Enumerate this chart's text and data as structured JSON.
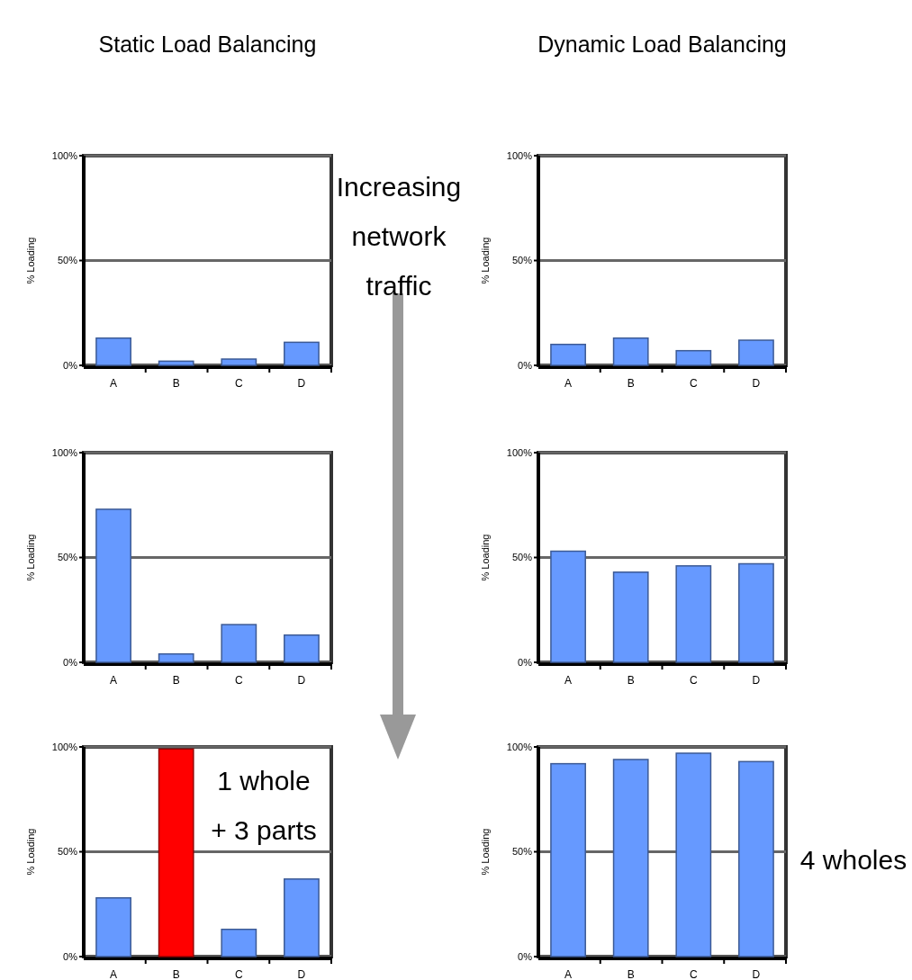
{
  "chart_data": [
    {
      "type": "bar",
      "title": "Static Load Balancing",
      "ylabel": "% Loading",
      "categories": [
        "A",
        "B",
        "C",
        "D"
      ],
      "values": [
        13,
        2,
        3,
        11
      ],
      "color": "#6699ff",
      "ylim": [
        0,
        100
      ],
      "yticks": [
        {
          "value": 0,
          "label": "0%"
        },
        {
          "value": 50,
          "label": "50%"
        },
        {
          "value": 100,
          "label": "100%"
        }
      ],
      "grid": "y",
      "annotations": [
        "Increasing network traffic"
      ]
    },
    {
      "type": "bar",
      "title": "Dynamic Load Balancing",
      "ylabel": "% Loading",
      "categories": [
        "A",
        "B",
        "C",
        "D"
      ],
      "values": [
        10,
        13,
        7,
        12
      ],
      "color": "#6699ff",
      "ylim": [
        0,
        100
      ],
      "yticks": [
        {
          "value": 0,
          "label": "0%"
        },
        {
          "value": 50,
          "label": "50%"
        },
        {
          "value": 100,
          "label": "100%"
        }
      ],
      "grid": "y"
    },
    {
      "type": "bar",
      "ylabel": "% Loading",
      "categories": [
        "A",
        "B",
        "C",
        "D"
      ],
      "values": [
        73,
        4,
        18,
        13
      ],
      "color": "#6699ff",
      "ylim": [
        0,
        100
      ],
      "yticks": [
        {
          "value": 0,
          "label": "0%"
        },
        {
          "value": 50,
          "label": "50%"
        },
        {
          "value": 100,
          "label": "100%"
        }
      ],
      "grid": "y"
    },
    {
      "type": "bar",
      "ylabel": "% Loading",
      "categories": [
        "A",
        "B",
        "C",
        "D"
      ],
      "values": [
        53,
        43,
        46,
        47
      ],
      "color": "#6699ff",
      "ylim": [
        0,
        100
      ],
      "yticks": [
        {
          "value": 0,
          "label": "0%"
        },
        {
          "value": 50,
          "label": "50%"
        },
        {
          "value": 100,
          "label": "100%"
        }
      ],
      "grid": "y"
    },
    {
      "type": "bar",
      "ylabel": "% Loading",
      "categories": [
        "A",
        "B",
        "C",
        "D"
      ],
      "values": [
        28,
        99,
        13,
        37
      ],
      "colors": [
        "#6699ff",
        "#ff0000",
        "#6699ff",
        "#6699ff"
      ],
      "ylim": [
        0,
        100
      ],
      "yticks": [
        {
          "value": 0,
          "label": "0%"
        },
        {
          "value": 50,
          "label": "50%"
        },
        {
          "value": 100,
          "label": "100%"
        }
      ],
      "grid": "y",
      "annotations": [
        "1 whole + 3 parts"
      ]
    },
    {
      "type": "bar",
      "ylabel": "% Loading",
      "categories": [
        "A",
        "B",
        "C",
        "D"
      ],
      "values": [
        92,
        94,
        97,
        93
      ],
      "color": "#6699ff",
      "ylim": [
        0,
        100
      ],
      "yticks": [
        {
          "value": 0,
          "label": "0%"
        },
        {
          "value": 50,
          "label": "50%"
        },
        {
          "value": 100,
          "label": "100%"
        }
      ],
      "grid": "y",
      "annotations": [
        "4 wholes"
      ]
    }
  ]
}
